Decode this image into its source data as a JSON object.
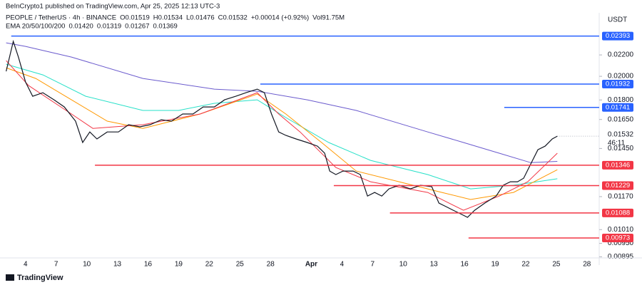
{
  "chart_data": {
    "type": "line",
    "publisher": "BeInCrypto1 published on TradingView.com, Apr 25, 2025 12:13 UTC-3",
    "title": "PEOPLE / TetherUS · 4h · BINANCE",
    "ohlc": {
      "open": "O0.01519",
      "high": "H0.01534",
      "low": "L0.01476",
      "close": "C0.01532",
      "change": "+0.00014 (+0.92%)",
      "volume": "Vol91.75M"
    },
    "ema_legend": {
      "title": "EMA 20/50/100/200",
      "values": [
        "0.01420",
        "0.01319",
        "0.01267",
        "0.01369"
      ]
    },
    "currency": "USDT",
    "brand": "TradingView",
    "log_scale": true,
    "xlim": [
      1.5,
      60.2
    ],
    "ylim": [
      0.00868,
      0.02654
    ],
    "xticks": [
      4,
      7,
      10,
      13,
      16,
      19,
      22,
      25,
      28,
      {
        "value": 32,
        "label": "Apr"
      },
      {
        "value": 35,
        "label": "4"
      },
      {
        "value": 38,
        "label": "7"
      },
      {
        "value": 41,
        "label": "10"
      },
      {
        "value": 44,
        "label": "13"
      },
      {
        "value": 47,
        "label": "16"
      },
      {
        "value": 50,
        "label": "19"
      },
      {
        "value": 53,
        "label": "22"
      },
      {
        "value": 56,
        "label": "25"
      },
      {
        "value": 59,
        "label": "28"
      }
    ],
    "yticks": [
      {
        "value": 0.022,
        "label": "0.02200"
      },
      {
        "value": 0.02,
        "label": "0.02000"
      },
      {
        "value": 0.018,
        "label": "0.01800"
      },
      {
        "value": 0.0165,
        "label": "0.01650"
      },
      {
        "value": 0.0145,
        "label": "0.01450"
      },
      {
        "value": 0.0117,
        "label": "0.01170"
      },
      {
        "value": 0.0101,
        "label": "0.01010"
      },
      {
        "value": 0.0095,
        "label": "0.00950"
      },
      {
        "value": 0.00895,
        "label": "0.00895"
      }
    ],
    "series": [
      {
        "name": "PEOPLE / TetherUS",
        "color": "#131722",
        "x": [
          2.1,
          2.8,
          3.3,
          4.0,
          4.7,
          5.7,
          6.8,
          7.8,
          8.9,
          9.6,
          10.3,
          11.0,
          12.0,
          13.1,
          14.1,
          15.2,
          16.2,
          17.3,
          18.3,
          19.4,
          20.4,
          21.4,
          22.5,
          23.5,
          24.6,
          25.6,
          26.7,
          27.4,
          28.1,
          28.8,
          29.5,
          30.5,
          31.6,
          32.6,
          33.3,
          33.8,
          34.4,
          35.1,
          36.1,
          36.8,
          37.5,
          38.2,
          38.9,
          39.6,
          40.6,
          41.7,
          42.7,
          43.8,
          44.5,
          45.2,
          45.9,
          46.6,
          47.3,
          48.0,
          49.0,
          50.1,
          50.8,
          51.5,
          52.2,
          52.8,
          53.5,
          54.2,
          54.9,
          55.6,
          56.1
        ],
        "values": [
          0.02045,
          0.02337,
          0.02179,
          0.0195,
          0.0183,
          0.01859,
          0.01801,
          0.01745,
          0.01638,
          0.01489,
          0.01561,
          0.01513,
          0.01561,
          0.01561,
          0.01612,
          0.01597,
          0.01612,
          0.01648,
          0.01638,
          0.01691,
          0.01691,
          0.01745,
          0.01745,
          0.01801,
          0.0183,
          0.01859,
          0.01889,
          0.01859,
          0.01691,
          0.01561,
          0.01537,
          0.01513,
          0.01489,
          0.01465,
          0.0142,
          0.01311,
          0.01291,
          0.01311,
          0.01311,
          0.01291,
          0.01173,
          0.01192,
          0.01173,
          0.01211,
          0.01231,
          0.01211,
          0.01231,
          0.01223,
          0.01137,
          0.01119,
          0.01101,
          0.01084,
          0.01067,
          0.01101,
          0.01137,
          0.01173,
          0.01231,
          0.0125,
          0.0125,
          0.0127,
          0.01354,
          0.01442,
          0.01465,
          0.01513,
          0.01532
        ]
      },
      {
        "name": "EMA 20",
        "color": "#f23645",
        "x": [
          2.1,
          4.3,
          8.5,
          10.6,
          15.5,
          21.1,
          26.7,
          28.8,
          30.9,
          34.4,
          37.8,
          43.4,
          46.9,
          50.4,
          53.2,
          56.1
        ],
        "values": [
          0.02145,
          0.01919,
          0.01691,
          0.01586,
          0.01612,
          0.01691,
          0.01859,
          0.01691,
          0.01561,
          0.01332,
          0.0125,
          0.01192,
          0.01101,
          0.01173,
          0.0125,
          0.0142
        ]
      },
      {
        "name": "EMA 50",
        "color": "#ff9800",
        "x": [
          2.1,
          5.0,
          8.5,
          12.0,
          15.5,
          21.1,
          26.7,
          29.5,
          33.0,
          36.4,
          40.6,
          44.8,
          47.6,
          51.8,
          56.1
        ],
        "values": [
          0.02078,
          0.01981,
          0.01801,
          0.01638,
          0.01586,
          0.01691,
          0.01848,
          0.01691,
          0.01489,
          0.01311,
          0.0125,
          0.01192,
          0.01155,
          0.01192,
          0.01319
        ]
      },
      {
        "name": "EMA 100",
        "color": "#26e0c8",
        "x": [
          2.1,
          5.7,
          9.9,
          15.5,
          19.0,
          22.5,
          26.7,
          29.5,
          33.7,
          37.8,
          43.4,
          47.6,
          51.8,
          56.1
        ],
        "values": [
          0.02111,
          0.02013,
          0.0183,
          0.01718,
          0.01718,
          0.01773,
          0.01801,
          0.01664,
          0.01489,
          0.01375,
          0.01291,
          0.01211,
          0.01231,
          0.01267
        ]
      },
      {
        "name": "EMA 200",
        "color": "#6a5acd",
        "x": [
          2.1,
          4.0,
          8.5,
          15.5,
          22.5,
          26.7,
          31.6,
          36.4,
          43.4,
          46.9,
          50.4,
          53.5,
          56.1
        ],
        "values": [
          0.02322,
          0.02285,
          0.02179,
          0.01981,
          0.01889,
          0.01871,
          0.01801,
          0.01718,
          0.01561,
          0.01489,
          0.0142,
          0.01361,
          0.01369
        ]
      }
    ],
    "levels": [
      {
        "value": 0.02393,
        "start": 2.6,
        "color": "#2962ff"
      },
      {
        "value": 0.01932,
        "start": 27.0,
        "color": "#2962ff"
      },
      {
        "value": 0.01741,
        "start": 50.9,
        "color": "#2962ff"
      },
      {
        "value": 0.01346,
        "start": 10.8,
        "color": "#f23645"
      },
      {
        "value": 0.01229,
        "start": 34.2,
        "color": "#f23645"
      },
      {
        "value": 0.01088,
        "start": 39.7,
        "color": "#f23645"
      },
      {
        "value": 0.00973,
        "start": 47.4,
        "color": "#f23645"
      }
    ],
    "last_price": {
      "value": 0.01532,
      "countdown": "46:11"
    }
  }
}
